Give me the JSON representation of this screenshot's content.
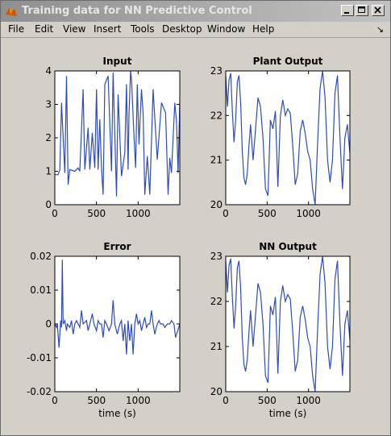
{
  "window": {
    "title": "Training data for NN Predictive Control",
    "app_icon": "matlab-icon",
    "controls": [
      "minimize-icon",
      "maximize-icon",
      "close-icon"
    ]
  },
  "menu": {
    "items": [
      "File",
      "Edit",
      "View",
      "Insert",
      "Tools",
      "Desktop",
      "Window",
      "Help"
    ],
    "dock_icon": "↘"
  },
  "chart_data": [
    {
      "type": "line",
      "title": "Input",
      "xlabel": "",
      "xlim": [
        0,
        1500
      ],
      "ylim": [
        0,
        4
      ],
      "xticks": [
        "0",
        "500",
        "1000"
      ],
      "yticks": [
        "0",
        "1",
        "2",
        "3",
        "4"
      ],
      "x": [
        0,
        40,
        60,
        80,
        120,
        140,
        160,
        180,
        240,
        280,
        300,
        340,
        360,
        400,
        420,
        450,
        460,
        480,
        500,
        520,
        540,
        560,
        580,
        600,
        640,
        680,
        700,
        740,
        760,
        800,
        840,
        860,
        880,
        890,
        910,
        920,
        950,
        970,
        990,
        1010,
        1040,
        1060,
        1080,
        1110,
        1140,
        1180,
        1230,
        1280,
        1330,
        1360,
        1380,
        1400,
        1440,
        1460,
        1480,
        1500
      ],
      "values": [
        0.9,
        0.9,
        1.05,
        3.05,
        0.95,
        3.85,
        0.6,
        1.05,
        1.0,
        1.1,
        1.0,
        3.45,
        1.05,
        2.3,
        1.05,
        2.15,
        1.8,
        1.1,
        3.45,
        1.05,
        2.55,
        1.1,
        0.3,
        3.6,
        3.85,
        1.0,
        3.95,
        0.25,
        3.3,
        0.85,
        1.55,
        3.6,
        1.05,
        2.7,
        4.0,
        3.75,
        2.05,
        1.1,
        3.6,
        1.8,
        3.45,
        2.75,
        0.3,
        1.45,
        0.3,
        3.45,
        1.35,
        3.05,
        2.75,
        0.3,
        1.4,
        0.95,
        3.05,
        2.5,
        0.95,
        3.1
      ]
    },
    {
      "type": "line",
      "title": "Plant Output",
      "xlabel": "",
      "xlim": [
        0,
        1500
      ],
      "ylim": [
        20,
        23
      ],
      "xticks": [
        "0",
        "500",
        "1000"
      ],
      "yticks": [
        "20",
        "21",
        "22",
        "23"
      ],
      "x": [
        0,
        20,
        40,
        60,
        80,
        100,
        120,
        140,
        160,
        180,
        200,
        220,
        240,
        260,
        280,
        300,
        330,
        360,
        390,
        420,
        450,
        480,
        510,
        540,
        570,
        600,
        630,
        660,
        690,
        720,
        750,
        780,
        810,
        840,
        870,
        900,
        930,
        960,
        990,
        1020,
        1050,
        1080,
        1110,
        1140,
        1170,
        1200,
        1230,
        1260,
        1290,
        1320,
        1350,
        1380,
        1410,
        1440,
        1470,
        1500
      ],
      "values": [
        22.9,
        22.2,
        22.8,
        22.95,
        22.1,
        21.4,
        21.9,
        22.75,
        22.9,
        22.3,
        21.2,
        20.6,
        20.45,
        20.7,
        21.3,
        21.8,
        21.0,
        21.7,
        22.4,
        22.2,
        21.5,
        20.35,
        20.2,
        21.9,
        21.7,
        22.1,
        20.4,
        22.0,
        22.35,
        22.0,
        22.15,
        22.05,
        21.3,
        20.45,
        20.7,
        21.65,
        21.9,
        21.6,
        21.2,
        21.0,
        20.35,
        20.0,
        21.4,
        22.6,
        23.0,
        22.4,
        21.0,
        20.5,
        21.0,
        22.5,
        22.9,
        21.5,
        20.35,
        21.5,
        21.8,
        21.15
      ]
    },
    {
      "type": "line",
      "title": "Error",
      "xlabel": "time (s)",
      "xlim": [
        0,
        1500
      ],
      "ylim": [
        -0.02,
        0.02
      ],
      "xticks": [
        "0",
        "500",
        "1000"
      ],
      "yticks": [
        "-0.02",
        "-0.01",
        "0",
        "0.01",
        "0.02"
      ],
      "x": [
        0,
        20,
        30,
        50,
        70,
        80,
        90,
        100,
        120,
        140,
        150,
        180,
        200,
        220,
        240,
        260,
        300,
        320,
        340,
        380,
        400,
        420,
        450,
        470,
        500,
        520,
        540,
        560,
        580,
        600,
        620,
        650,
        680,
        700,
        720,
        750,
        780,
        800,
        820,
        840,
        860,
        880,
        900,
        920,
        940,
        960,
        980,
        1000,
        1020,
        1040,
        1060,
        1080,
        1100,
        1120,
        1140,
        1160,
        1180,
        1200,
        1230,
        1250,
        1270,
        1300,
        1320,
        1350,
        1380,
        1400,
        1430,
        1450,
        1500
      ],
      "values": [
        0,
        -0.001,
        0.0,
        -0.007,
        0.001,
        -0.001,
        0.019,
        0.0,
        0.001,
        -0.002,
        0.0,
        -0.001,
        0.001,
        -0.003,
        0.0,
        0.001,
        -0.001,
        0.004,
        0.0,
        0.001,
        -0.002,
        0.0,
        0.003,
        0.0,
        -0.002,
        0.001,
        0.0,
        0.0,
        -0.004,
        0.001,
        0.0,
        -0.002,
        0.0,
        0.007,
        0.0,
        -0.003,
        0.0,
        0.001,
        -0.005,
        0.0,
        -0.009,
        0.001,
        -0.005,
        0.0,
        -0.009,
        0.0,
        0.003,
        0.0,
        0.001,
        -0.002,
        0.0,
        0.002,
        -0.001,
        0.0,
        0.0,
        0.004,
        0.0,
        -0.003,
        0.0,
        0.001,
        0.0,
        0.0,
        -0.001,
        0.0,
        0.0,
        0.001,
        0.0,
        -0.004,
        0.0
      ]
    },
    {
      "type": "line",
      "title": "NN Output",
      "xlabel": "time (s)",
      "xlim": [
        0,
        1500
      ],
      "ylim": [
        20,
        23
      ],
      "xticks": [
        "0",
        "500",
        "1000"
      ],
      "yticks": [
        "20",
        "21",
        "22",
        "23"
      ],
      "x": [
        0,
        20,
        40,
        60,
        80,
        100,
        120,
        140,
        160,
        180,
        200,
        220,
        240,
        260,
        280,
        300,
        330,
        360,
        390,
        420,
        450,
        480,
        510,
        540,
        570,
        600,
        630,
        660,
        690,
        720,
        750,
        780,
        810,
        840,
        870,
        900,
        930,
        960,
        990,
        1020,
        1050,
        1080,
        1110,
        1140,
        1170,
        1200,
        1230,
        1260,
        1290,
        1320,
        1350,
        1380,
        1410,
        1440,
        1470,
        1500
      ],
      "values": [
        22.9,
        22.2,
        22.8,
        22.95,
        22.1,
        21.4,
        21.9,
        22.75,
        22.9,
        22.3,
        21.2,
        20.6,
        20.45,
        20.7,
        21.3,
        21.8,
        21.0,
        21.7,
        22.4,
        22.2,
        21.5,
        20.35,
        20.2,
        21.9,
        21.7,
        22.1,
        20.4,
        22.0,
        22.35,
        22.0,
        22.15,
        22.05,
        21.3,
        20.45,
        20.7,
        21.65,
        21.9,
        21.6,
        21.2,
        21.0,
        20.35,
        20.0,
        21.4,
        22.6,
        23.0,
        22.4,
        21.0,
        20.5,
        21.0,
        22.5,
        22.9,
        21.5,
        20.35,
        21.5,
        21.8,
        21.15
      ]
    }
  ],
  "colors": {
    "line": "#2b4bc4",
    "axes_bg": "#ffffff",
    "figure_bg": "#d4d0c8"
  }
}
